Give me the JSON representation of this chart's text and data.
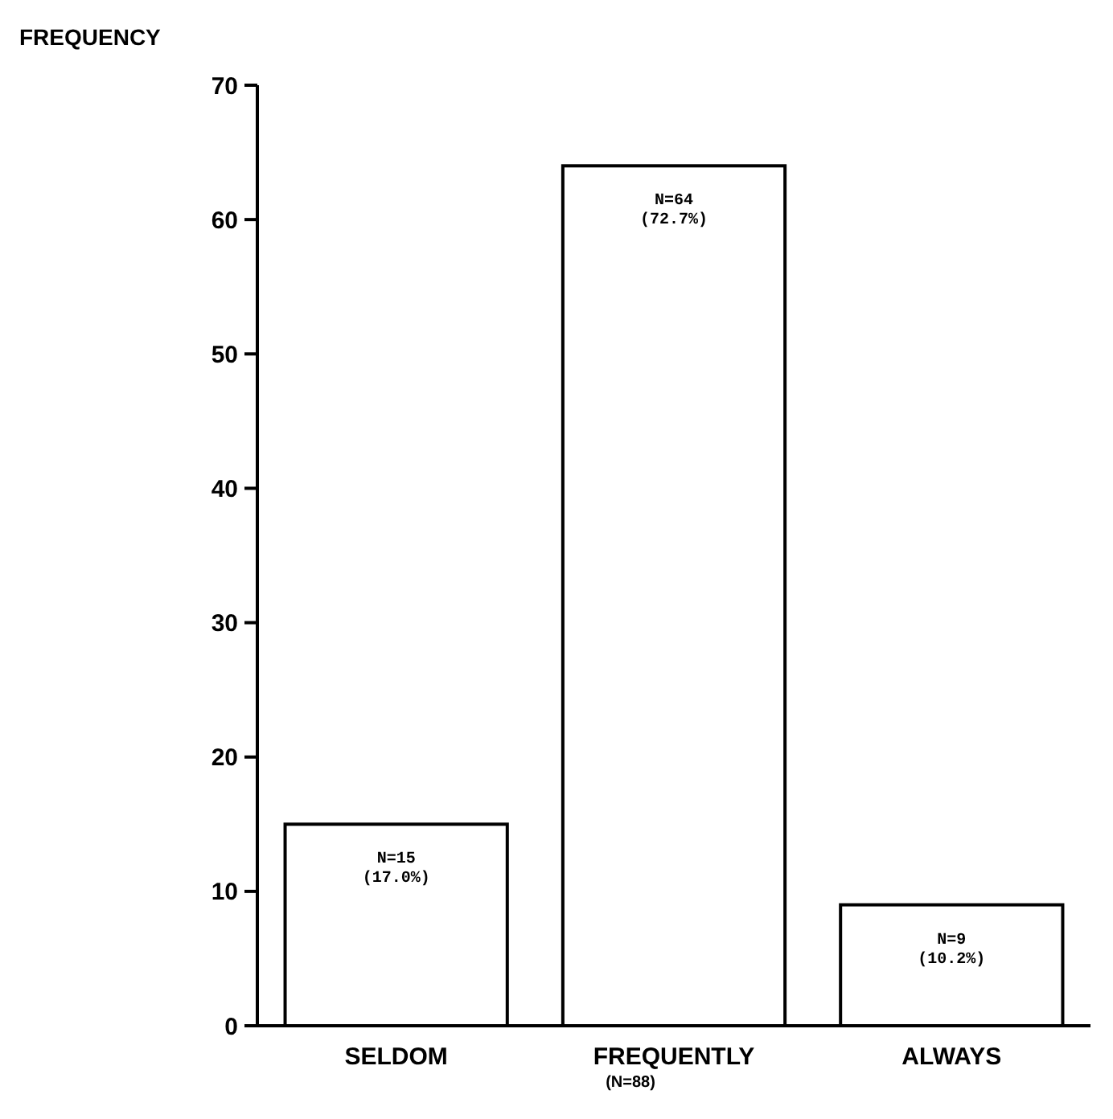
{
  "chart_data": {
    "type": "bar",
    "ylabel": "FREQUENCY",
    "categories": [
      "SELDOM",
      "FREQUENTLY",
      "ALWAYS"
    ],
    "values": [
      15,
      64,
      9
    ],
    "color": "#ffffff",
    "value_labels": [
      "N=15\n(17.0%)",
      "N=64\n(72.7%)",
      "N=9\n(10.2%)"
    ],
    "ylim": [
      0,
      70
    ],
    "yticks": [
      0,
      10,
      20,
      30,
      40,
      50,
      60,
      70
    ],
    "grid": false,
    "annotations": [
      "(N=88)"
    ]
  }
}
